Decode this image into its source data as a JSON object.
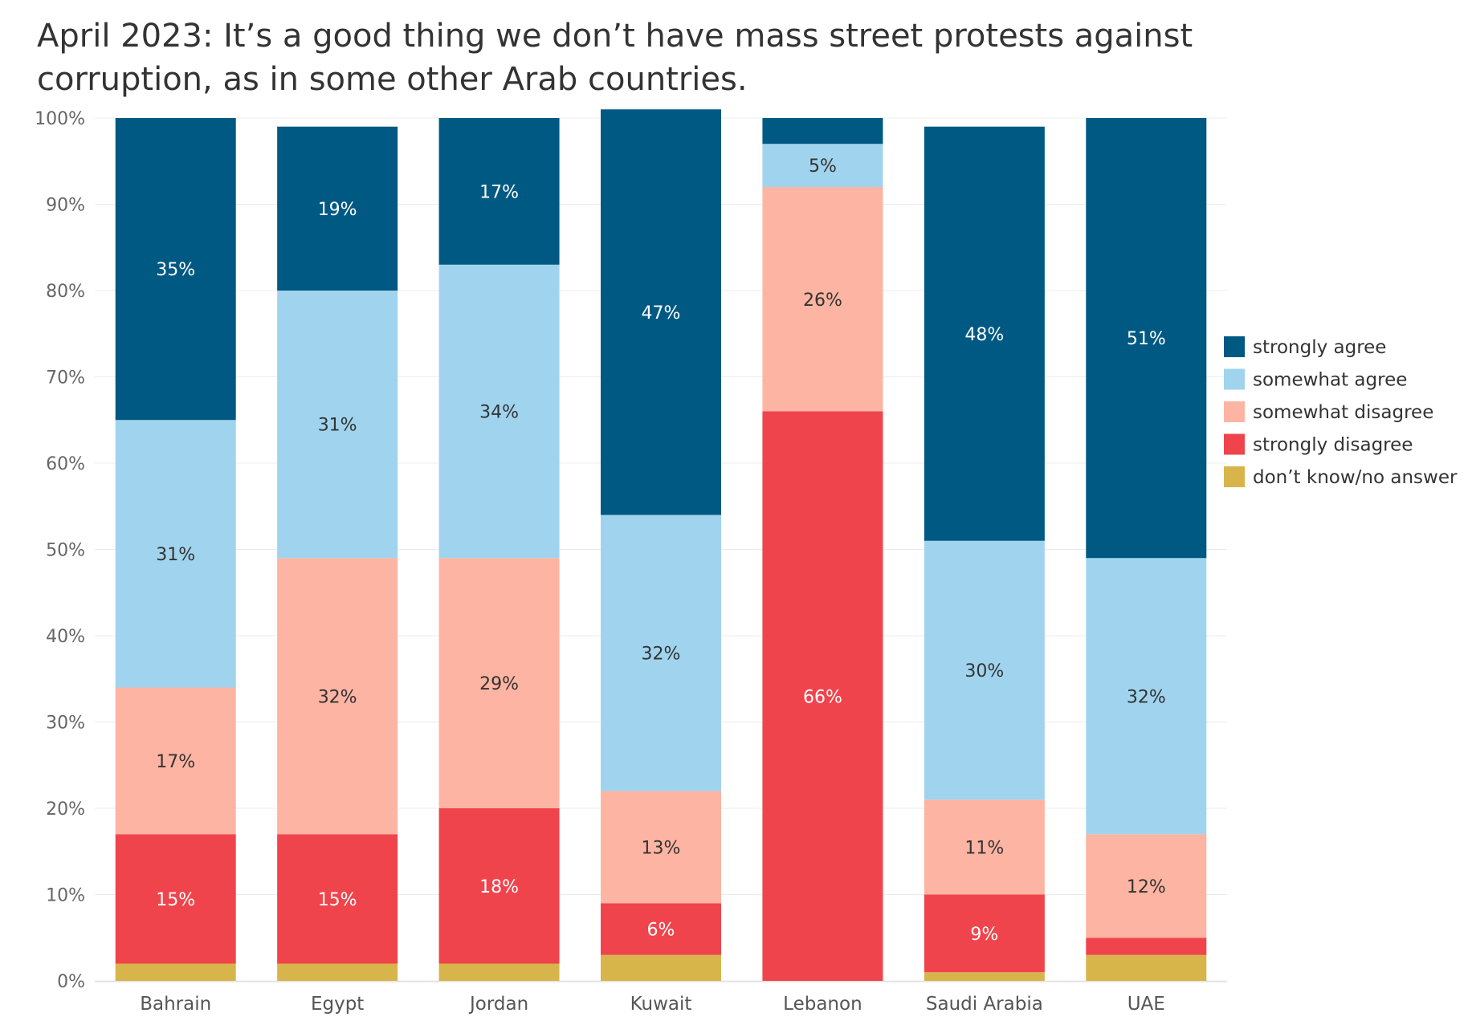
{
  "chart_data": {
    "type": "bar",
    "stacked": true,
    "title": "April 2023: It’s a good thing we don’t have mass street protests against corruption, as in some other Arab countries.",
    "xlabel": "",
    "ylabel": "",
    "ylim": [
      0,
      100
    ],
    "yticks": [
      "0%",
      "10%",
      "20%",
      "30%",
      "40%",
      "50%",
      "60%",
      "70%",
      "80%",
      "90%",
      "100%"
    ],
    "grid": true,
    "legend_position": "right",
    "categories": [
      "Bahrain",
      "Egypt",
      "Jordan",
      "Kuwait",
      "Lebanon",
      "Saudi Arabia",
      "UAE"
    ],
    "series": [
      {
        "name": "don’t know/no answer",
        "color": "#d8b54a",
        "label_color": "#333333",
        "values": [
          2,
          2,
          2,
          3,
          0,
          1,
          3
        ],
        "labels": [
          "",
          "",
          "",
          "",
          "",
          "",
          ""
        ]
      },
      {
        "name": "strongly disagree",
        "color": "#f0444c",
        "label_color": "#ffffff",
        "values": [
          15,
          15,
          18,
          6,
          66,
          9,
          2
        ],
        "labels": [
          "15%",
          "15%",
          "18%",
          "6%",
          "66%",
          "9%",
          ""
        ]
      },
      {
        "name": "somewhat disagree",
        "color": "#fdb4a2",
        "label_color": "#333333",
        "values": [
          17,
          32,
          29,
          13,
          26,
          11,
          12
        ],
        "labels": [
          "17%",
          "32%",
          "29%",
          "13%",
          "26%",
          "11%",
          "12%"
        ]
      },
      {
        "name": "somewhat agree",
        "color": "#a0d4ee",
        "label_color": "#333333",
        "values": [
          31,
          31,
          34,
          32,
          5,
          30,
          32
        ],
        "labels": [
          "31%",
          "31%",
          "34%",
          "32%",
          "5%",
          "30%",
          "32%"
        ]
      },
      {
        "name": "strongly agree",
        "color": "#005983",
        "label_color": "#ffffff",
        "values": [
          35,
          19,
          17,
          47,
          3,
          48,
          51
        ],
        "labels": [
          "35%",
          "19%",
          "17%",
          "47%",
          "",
          "48%",
          "51%"
        ]
      }
    ],
    "legend": [
      "strongly agree",
      "somewhat agree",
      "somewhat disagree",
      "strongly disagree",
      "don’t know/no answer"
    ]
  }
}
